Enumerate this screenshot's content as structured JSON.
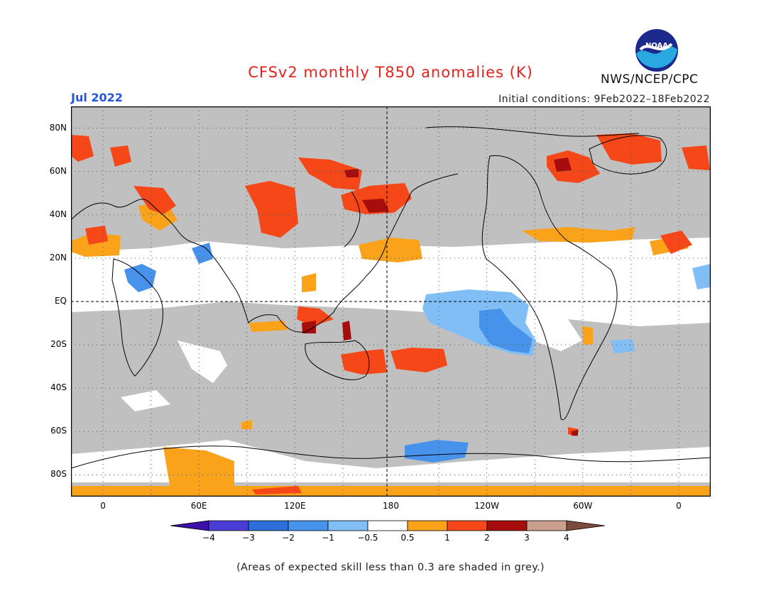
{
  "title": "CFSv2 monthly T850 anomalies (K)",
  "month": "Jul 2022",
  "initial_conditions": "Initial conditions: 9Feb2022–18Feb2022",
  "agency": "NWS/NCEP/CPC",
  "logo_text": "NOAA",
  "footnote": "(Areas of expected skill less than 0.3 are shaded in grey.)",
  "lat_labels": [
    "80N",
    "60N",
    "40N",
    "20N",
    "EQ",
    "20S",
    "40S",
    "60S",
    "80S"
  ],
  "lat_values": [
    80,
    60,
    40,
    20,
    0,
    -20,
    -40,
    -60,
    -80
  ],
  "lon_labels": [
    "0",
    "60E",
    "120E",
    "180",
    "120W",
    "60W",
    "0"
  ],
  "lon_values": [
    0,
    60,
    120,
    180,
    240,
    300,
    360
  ],
  "colorbar": {
    "labels": [
      "−4",
      "−3",
      "−2",
      "−1",
      "−0.5",
      "0.5",
      "1",
      "2",
      "3",
      "4"
    ],
    "colors": [
      "#3a10a8",
      "#4a3dd6",
      "#2d6fd8",
      "#4793ec",
      "#80bef5",
      "#ffffff",
      "#f9a21a",
      "#f54717",
      "#a60d0d",
      "#c8a08c",
      "#7c4b3d"
    ]
  },
  "map_colors": {
    "skill_grey": "#c0c0c0",
    "no_anomaly": "#ffffff",
    "coastline": "#000000"
  }
}
